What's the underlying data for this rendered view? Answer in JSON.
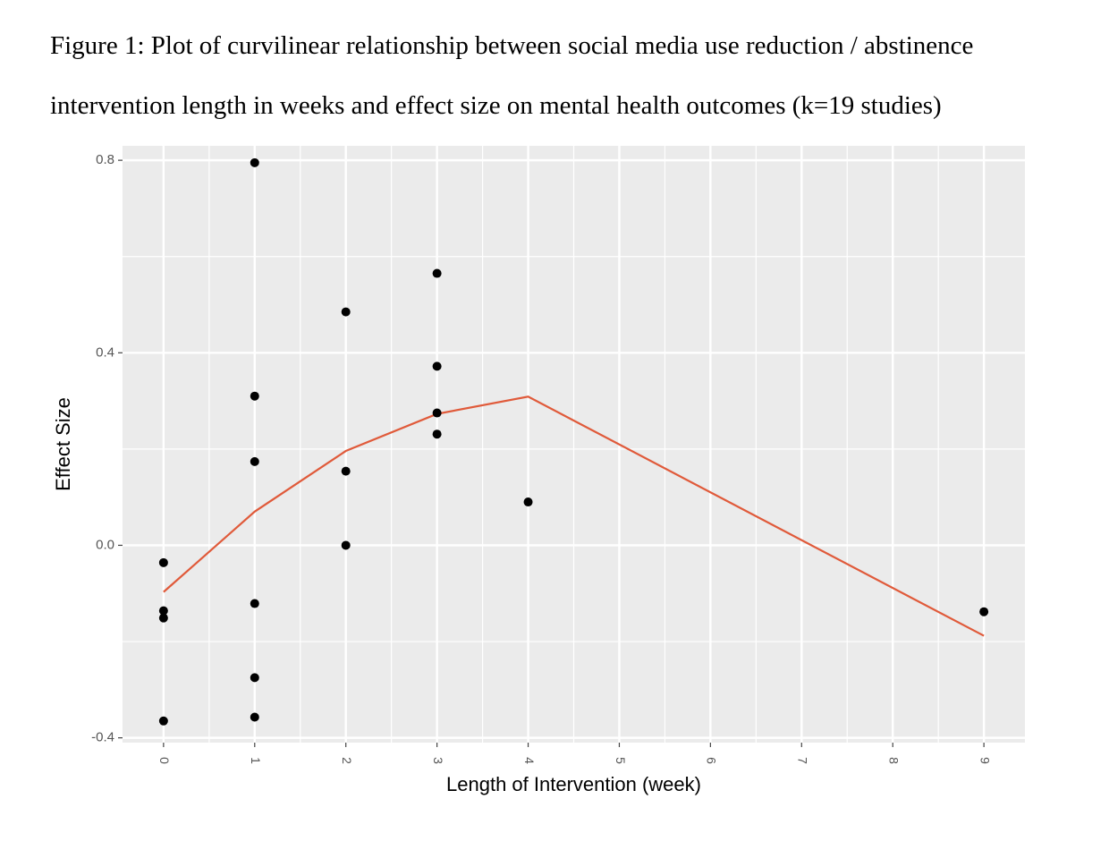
{
  "figure": {
    "caption_line1": "Figure 1: Plot of curvilinear relationship between social media use reduction / abstinence",
    "caption_line2": "intervention length in weeks and effect size on mental health outcomes (k=19 studies)"
  },
  "chart_data": {
    "type": "scatter",
    "xlabel": "Length of Intervention (week)",
    "ylabel": "Effect Size",
    "xlim": [
      -0.45,
      9.45
    ],
    "ylim": [
      -0.41,
      0.83
    ],
    "x_ticks": [
      0,
      1,
      2,
      3,
      4,
      5,
      6,
      7,
      8,
      9
    ],
    "x_tick_labels": [
      "0",
      "1",
      "2",
      "3",
      "4",
      "5",
      "6",
      "7",
      "8",
      "9"
    ],
    "y_ticks": [
      0.8,
      0.4,
      0.0,
      -0.4
    ],
    "y_tick_labels": [
      "0.8",
      "0.4",
      "0.0",
      "-0.4"
    ],
    "grid": true,
    "background": "#ebebeb",
    "grid_color": "#ffffff",
    "point_color": "#000000",
    "line_color": "#e05a3a",
    "points": {
      "x": [
        0,
        0,
        0,
        0,
        1,
        1,
        1,
        1,
        1,
        1,
        2,
        2,
        2,
        3,
        3,
        3,
        3,
        4,
        9
      ],
      "y": [
        -0.036,
        -0.136,
        -0.151,
        -0.365,
        0.795,
        0.31,
        0.174,
        -0.121,
        -0.275,
        -0.357,
        0.485,
        0.154,
        0.0,
        0.565,
        0.372,
        0.275,
        0.231,
        0.09,
        -0.138
      ]
    },
    "fit_line": {
      "x": [
        0,
        1,
        2,
        3,
        4,
        9
      ],
      "y": [
        -0.097,
        0.07,
        0.196,
        0.273,
        0.309,
        -0.188
      ]
    }
  }
}
